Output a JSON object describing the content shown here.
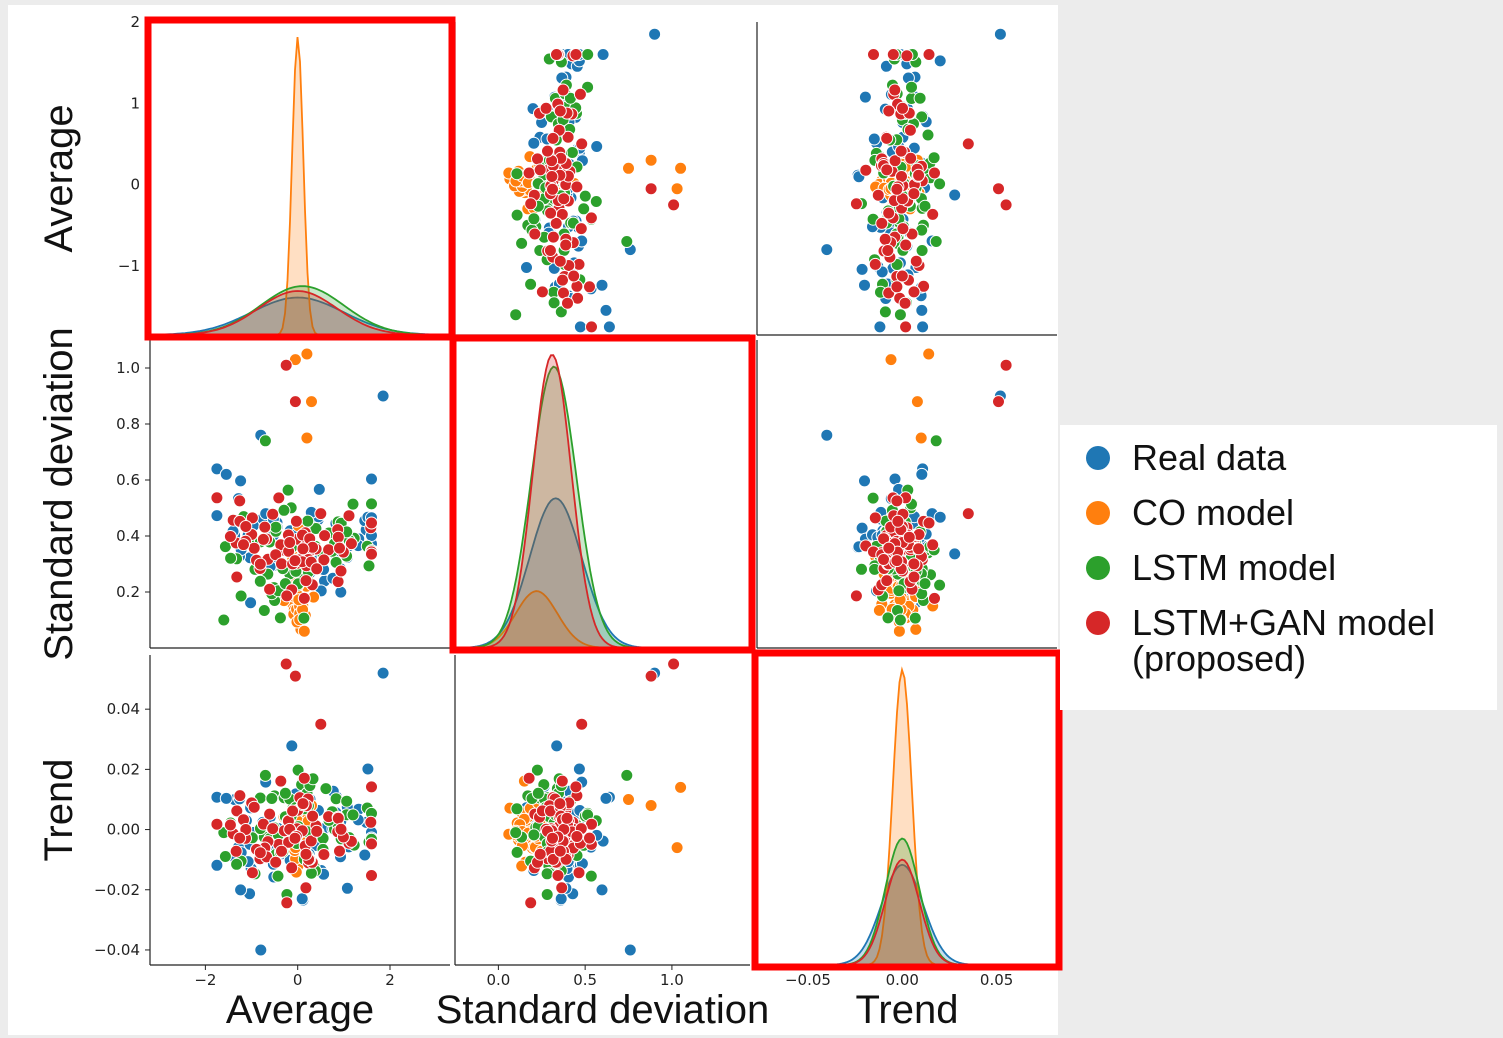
{
  "chart_data": {
    "type": "scatter",
    "subtype": "pairplot",
    "variables": [
      "Average",
      "Standard deviation",
      "Trend"
    ],
    "axis_ranges": {
      "Average": [
        -3.2,
        3.3
      ],
      "Standard deviation": [
        -0.25,
        1.45
      ],
      "Trend": [
        -0.077,
        0.082
      ]
    },
    "y_axis_ranges": {
      "Average": [
        -1.85,
        2.0
      ],
      "Standard deviation": [
        0.0,
        1.1
      ],
      "Trend": [
        -0.045,
        0.058
      ]
    },
    "ticks": {
      "Average": {
        "values": [
          -2,
          0,
          2
        ],
        "labels": [
          "−2",
          "0",
          "2"
        ]
      },
      "Standard deviation": {
        "values": [
          0.0,
          0.5,
          1.0
        ],
        "labels": [
          "0.0",
          "0.5",
          "1.0"
        ]
      },
      "Trend": {
        "values": [
          -0.05,
          0.0,
          0.05
        ],
        "labels": [
          "−0.05",
          "0.00",
          "0.05"
        ]
      }
    },
    "y_ticks": {
      "Average": {
        "values": [
          2,
          1,
          0,
          -1
        ],
        "labels": [
          "2",
          "1",
          "0",
          "−1"
        ]
      },
      "Standard deviation": {
        "values": [
          1.0,
          0.8,
          0.6,
          0.4,
          0.2
        ],
        "labels": [
          "1.0",
          "0.8",
          "0.6",
          "0.4",
          "0.2"
        ]
      },
      "Trend": {
        "values": [
          0.04,
          0.02,
          0.0,
          -0.02,
          -0.04
        ],
        "labels": [
          "0.04",
          "0.02",
          "0.00",
          "−0.02",
          "−0.04"
        ]
      }
    },
    "series": [
      {
        "name": "Real data",
        "color": "#1f77b4",
        "dist": {
          "Average": {
            "mean": 0.0,
            "sd": 1.0
          },
          "Standard deviation": {
            "mean": 0.33,
            "sd": 0.15
          },
          "Trend": {
            "mean": 0.0,
            "sd": 0.011
          }
        },
        "outliers": [
          [
            1.85,
            0.9,
            0.052
          ],
          [
            -0.8,
            0.76,
            -0.04
          ]
        ]
      },
      {
        "name": "CO model",
        "color": "#ff7f0e",
        "dist": {
          "Average": {
            "mean": 0.0,
            "sd": 0.12
          },
          "Standard deviation": {
            "mean": 0.22,
            "sd": 0.12
          },
          "Trend": {
            "mean": 0.0,
            "sd": 0.005
          }
        },
        "outliers": [
          [
            0.2,
            1.05,
            0.014
          ],
          [
            -0.05,
            1.03,
            -0.006
          ],
          [
            0.3,
            0.88,
            0.008
          ],
          [
            0.2,
            0.75,
            0.01
          ]
        ]
      },
      {
        "name": "LSTM model",
        "color": "#2ca02c",
        "dist": {
          "Average": {
            "mean": 0.1,
            "sd": 0.9
          },
          "Standard deviation": {
            "mean": 0.32,
            "sd": 0.13
          },
          "Trend": {
            "mean": 0.0,
            "sd": 0.009
          }
        },
        "outliers": [
          [
            -1.6,
            0.1,
            -0.001
          ],
          [
            -0.7,
            0.74,
            0.018
          ]
        ]
      },
      {
        "name": "LSTM+GAN model\n(proposed)",
        "color": "#d62728",
        "dist": {
          "Average": {
            "mean": 0.0,
            "sd": 0.85
          },
          "Standard deviation": {
            "mean": 0.31,
            "sd": 0.11
          },
          "Trend": {
            "mean": 0.0,
            "sd": 0.009
          }
        },
        "outliers": [
          [
            -0.25,
            1.01,
            0.055
          ],
          [
            -0.05,
            0.88,
            0.051
          ],
          [
            0.5,
            0.48,
            0.035
          ]
        ]
      }
    ],
    "kde_peaks": {
      "Average": [
        0.23,
        1.83,
        0.3,
        0.27
      ],
      "Standard deviation": [
        0.5,
        0.19,
        0.94,
        0.98
      ],
      "Trend": [
        0.19,
        0.56,
        0.24,
        0.2
      ]
    },
    "highlight_color": "#ff0000",
    "grid": false,
    "legend_position": "right"
  },
  "legend": {
    "items": [
      {
        "label": "Real data",
        "color": "#1f77b4"
      },
      {
        "label": "CO model",
        "color": "#ff7f0e"
      },
      {
        "label": "LSTM model",
        "color": "#2ca02c"
      },
      {
        "label": "LSTM+GAN model",
        "label2": "(proposed)",
        "color": "#d62728"
      }
    ]
  }
}
